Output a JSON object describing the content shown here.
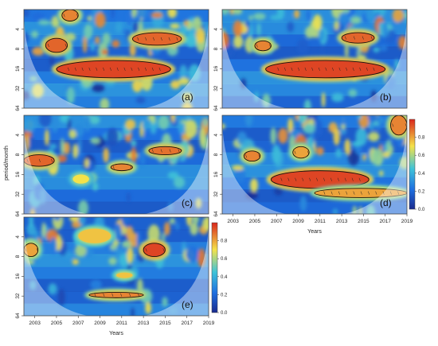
{
  "figure": {
    "y_axis_label": "period/month",
    "x_axis_label": "Years",
    "colorbar_ticks": [
      "0.0",
      "0.2",
      "0.4",
      "0.6",
      "0.8"
    ]
  },
  "palette": {
    "low": "#1a2a8e",
    "mid_low": "#1e6fe0",
    "mid": "#3fc3d8",
    "mid_high": "#f4e24a",
    "high": "#d9261c",
    "cone_shade": "rgba(255,255,255,0.42)",
    "contour": "#111111"
  },
  "chart_data": [
    {
      "type": "heatmap",
      "title": "(a)",
      "ylabel": "",
      "xlabel": "",
      "y_ticks": [
        "4",
        "8",
        "16",
        "32",
        "64"
      ],
      "x_ticks": [],
      "xlim": [
        2002,
        2019
      ],
      "ylim_period": [
        2,
        64
      ],
      "zlim": [
        0,
        1
      ],
      "colorbar": false,
      "regions": [
        {
          "x": [
            2005.0,
            2015.5
          ],
          "period": [
            12,
            22
          ],
          "power": 0.95
        },
        {
          "x": [
            2012.0,
            2016.5
          ],
          "period": [
            4.5,
            7
          ],
          "power": 0.9
        },
        {
          "x": [
            2004.0,
            2006.0
          ],
          "period": [
            5.5,
            9
          ],
          "power": 0.9
        },
        {
          "x": [
            2005.5,
            2007.0
          ],
          "period": [
            2,
            3
          ],
          "power": 0.85
        }
      ]
    },
    {
      "type": "heatmap",
      "title": "(b)",
      "ylabel": "",
      "xlabel": "",
      "y_ticks": [
        "4",
        "8",
        "16",
        "32",
        "64"
      ],
      "x_ticks": [],
      "xlim": [
        2002,
        2019
      ],
      "ylim_period": [
        2,
        64
      ],
      "zlim": [
        0,
        1
      ],
      "colorbar": false,
      "regions": [
        {
          "x": [
            2006.0,
            2017.0
          ],
          "period": [
            12,
            22
          ],
          "power": 0.95
        },
        {
          "x": [
            2013.0,
            2016.0
          ],
          "period": [
            4.5,
            6.5
          ],
          "power": 0.9
        },
        {
          "x": [
            2005.0,
            2006.5
          ],
          "period": [
            6,
            8.5
          ],
          "power": 0.85
        }
      ]
    },
    {
      "type": "heatmap",
      "title": "(c)",
      "ylabel": "period/month",
      "xlabel": "",
      "y_ticks": [
        "4",
        "8",
        "16",
        "32",
        "64"
      ],
      "x_ticks": [],
      "xlim": [
        2002,
        2019
      ],
      "ylim_period": [
        2,
        64
      ],
      "zlim": [
        0,
        1
      ],
      "colorbar": false,
      "regions": [
        {
          "x": [
            2002.0,
            2004.8
          ],
          "period": [
            8,
            12
          ],
          "power": 0.9
        },
        {
          "x": [
            2010.0,
            2012.0
          ],
          "period": [
            11,
            14
          ],
          "power": 0.85
        },
        {
          "x": [
            2013.5,
            2016.5
          ],
          "period": [
            6,
            8
          ],
          "power": 0.88
        },
        {
          "x": [
            2006.5,
            2008.0
          ],
          "period": [
            16,
            22
          ],
          "power": 0.7
        }
      ]
    },
    {
      "type": "heatmap",
      "title": "(d)",
      "ylabel": "",
      "xlabel": "Years",
      "y_ticks": [
        "4",
        "8",
        "16",
        "32",
        "64"
      ],
      "x_ticks": [
        "2003",
        "2005",
        "2007",
        "2009",
        "2011",
        "2013",
        "2015",
        "2017",
        "2019"
      ],
      "xlim": [
        2002,
        2019
      ],
      "ylim_period": [
        2,
        64
      ],
      "zlim": [
        0,
        1
      ],
      "colorbar": true,
      "colorbar_ticks": [
        0,
        0.2,
        0.4,
        0.6,
        0.8
      ],
      "regions": [
        {
          "x": [
            2006.5,
            2015.5
          ],
          "period": [
            14,
            26
          ],
          "power": 0.95
        },
        {
          "x": [
            2010.5,
            2019.0
          ],
          "period": [
            26,
            36
          ],
          "power": 0.8
        },
        {
          "x": [
            2004.0,
            2005.5
          ],
          "period": [
            7,
            10
          ],
          "power": 0.85
        },
        {
          "x": [
            2008.5,
            2010.0
          ],
          "period": [
            6,
            9
          ],
          "power": 0.8
        },
        {
          "x": [
            2017.5,
            2019.0
          ],
          "period": [
            2,
            4
          ],
          "power": 0.85
        }
      ]
    },
    {
      "type": "heatmap",
      "title": "(e)",
      "ylabel": "",
      "xlabel": "Years",
      "y_ticks": [
        "4",
        "8",
        "16",
        "32",
        "64"
      ],
      "x_ticks": [
        "2003",
        "2005",
        "2007",
        "2009",
        "2011",
        "2013",
        "2015",
        "2017",
        "2019"
      ],
      "xlim": [
        2002,
        2019
      ],
      "ylim_period": [
        2,
        64
      ],
      "zlim": [
        0,
        1
      ],
      "colorbar": true,
      "colorbar_ticks": [
        0,
        0.2,
        0.4,
        0.6,
        0.8
      ],
      "regions": [
        {
          "x": [
            2013.0,
            2015.0
          ],
          "period": [
            5,
            8
          ],
          "power": 0.95
        },
        {
          "x": [
            2002.0,
            2003.3
          ],
          "period": [
            5,
            8
          ],
          "power": 0.8
        },
        {
          "x": [
            2007.0,
            2010.0
          ],
          "period": [
            3,
            5
          ],
          "power": 0.75
        },
        {
          "x": [
            2008.0,
            2013.0
          ],
          "period": [
            28,
            34
          ],
          "power": 0.85
        },
        {
          "x": [
            2010.5,
            2012.0
          ],
          "period": [
            14,
            17
          ],
          "power": 0.75
        }
      ]
    }
  ]
}
